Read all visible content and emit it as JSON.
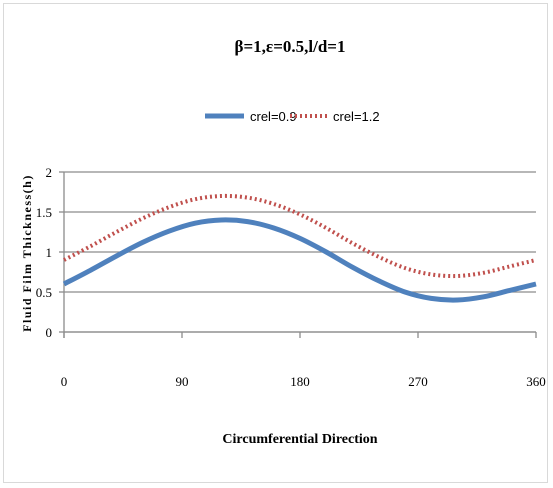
{
  "chart_data": {
    "type": "line",
    "title": "β=1,ε=0.5,l/d=1",
    "xlabel": "Circumferential Direction",
    "ylabel": "Fluid Film Thickness(h)",
    "x_ticks": [
      "0",
      "90",
      "180",
      "270",
      "360"
    ],
    "y_ticks": [
      "0",
      "0.5",
      "1",
      "1.5",
      "2"
    ],
    "xlim": [
      0,
      360
    ],
    "ylim": [
      0,
      2
    ],
    "grid": "horizontal",
    "legend_position": "top",
    "x": [
      0,
      20,
      40,
      60,
      80,
      100,
      120,
      140,
      160,
      180,
      200,
      220,
      240,
      260,
      280,
      300,
      320,
      340,
      360
    ],
    "series": [
      {
        "name": "crel=0.9",
        "color": "#4f81bd",
        "style": "solid",
        "values": [
          0.6,
          0.77,
          0.95,
          1.12,
          1.26,
          1.36,
          1.4,
          1.38,
          1.3,
          1.17,
          1.0,
          0.81,
          0.64,
          0.5,
          0.42,
          0.4,
          0.44,
          0.52,
          0.6
        ]
      },
      {
        "name": "crel=1.2",
        "color": "#c0504d",
        "style": "dotted",
        "values": [
          0.9,
          1.07,
          1.25,
          1.42,
          1.56,
          1.66,
          1.7,
          1.68,
          1.6,
          1.47,
          1.3,
          1.11,
          0.94,
          0.8,
          0.72,
          0.7,
          0.74,
          0.82,
          0.9
        ]
      }
    ]
  }
}
